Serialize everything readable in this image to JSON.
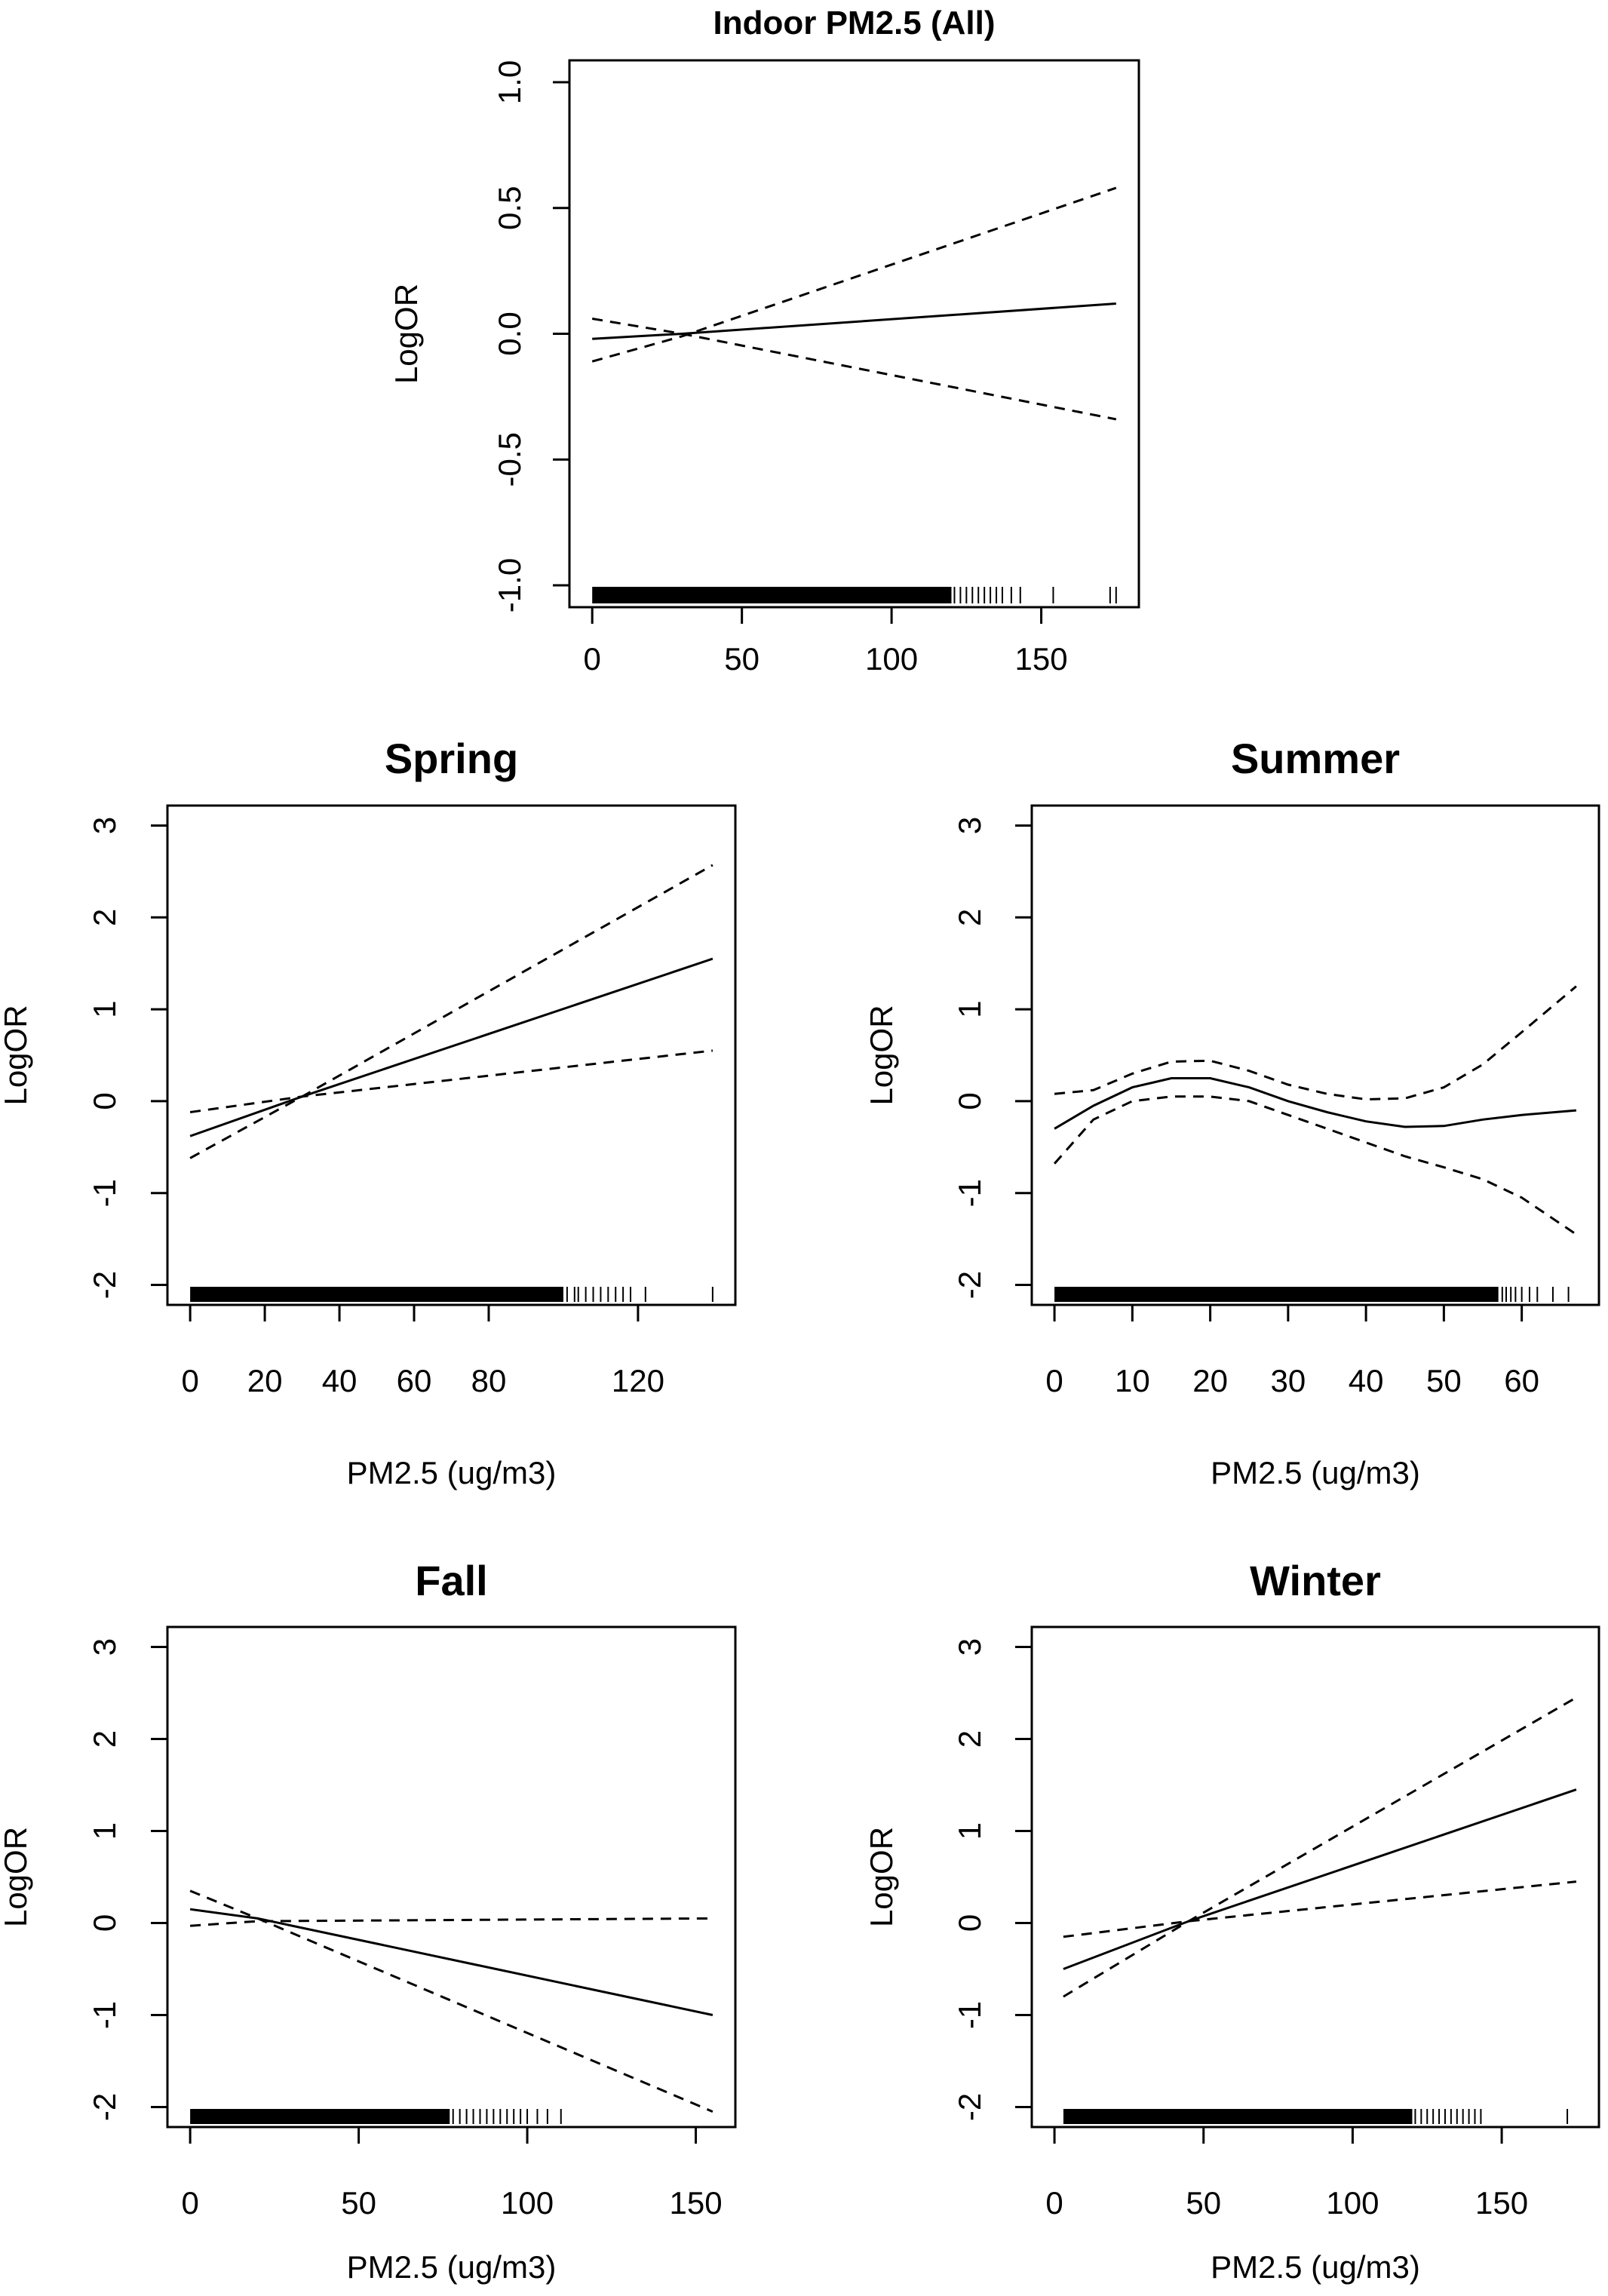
{
  "chart_data": [
    {
      "type": "line",
      "title": "Indoor PM2.5 (All)",
      "xlabel": "",
      "ylabel": "LogOR",
      "xlim": [
        0,
        175
      ],
      "ylim": [
        -1.0,
        1.0
      ],
      "xticks": [
        0,
        50,
        100,
        150
      ],
      "yticks": [
        -1.0,
        -0.5,
        0.0,
        0.5,
        1.0
      ],
      "ytick_labels": [
        "-1.0",
        "-0.5",
        "0.0",
        "0.5",
        "1.0"
      ],
      "grid": false,
      "series": [
        {
          "style": "solid",
          "x": [
            0,
            30,
            175
          ],
          "y": [
            -0.02,
            0.0,
            0.12
          ]
        },
        {
          "style": "dashed",
          "x": [
            0,
            30,
            175
          ],
          "y": [
            -0.11,
            -0.01,
            0.58
          ]
        },
        {
          "style": "dashed",
          "x": [
            0,
            30,
            175
          ],
          "y": [
            0.06,
            0.0,
            -0.34
          ]
        }
      ],
      "rug": {
        "dense_range": [
          0,
          120
        ],
        "sparse": [
          121,
          123,
          125,
          127,
          129,
          131,
          133,
          135,
          137,
          140,
          143,
          154,
          173,
          175
        ]
      }
    },
    {
      "type": "line",
      "title": "Spring",
      "xlabel": "PM2.5 (ug/m3)",
      "ylabel": "LogOR",
      "xlim": [
        0,
        140
      ],
      "ylim": [
        -2,
        3
      ],
      "xticks": [
        0,
        20,
        40,
        60,
        80,
        120
      ],
      "yticks": [
        -2,
        -1,
        0,
        1,
        2,
        3
      ],
      "ytick_labels": [
        "-2",
        "-1",
        "0",
        "1",
        "2",
        "3"
      ],
      "grid": false,
      "series": [
        {
          "style": "solid",
          "x": [
            0,
            30,
            140
          ],
          "y": [
            -0.38,
            0.05,
            1.55
          ]
        },
        {
          "style": "dashed",
          "x": [
            0,
            30,
            140
          ],
          "y": [
            -0.62,
            0.05,
            2.57
          ]
        },
        {
          "style": "dashed",
          "x": [
            0,
            30,
            140
          ],
          "y": [
            -0.12,
            0.05,
            0.55
          ]
        }
      ],
      "rug": {
        "dense_range": [
          0,
          100
        ],
        "sparse": [
          101,
          103,
          104,
          106,
          108,
          110,
          112,
          114,
          116,
          118,
          122,
          140
        ]
      }
    },
    {
      "type": "line",
      "title": "Summer",
      "xlabel": "PM2.5 (ug/m3)",
      "ylabel": "LogOR",
      "xlim": [
        0,
        67
      ],
      "ylim": [
        -2,
        3
      ],
      "xticks": [
        0,
        10,
        20,
        30,
        40,
        50,
        60
      ],
      "yticks": [
        -2,
        -1,
        0,
        1,
        2,
        3
      ],
      "ytick_labels": [
        "-2",
        "-1",
        "0",
        "1",
        "2",
        "3"
      ],
      "grid": false,
      "series": [
        {
          "style": "solid",
          "x": [
            0,
            5,
            10,
            15,
            20,
            25,
            30,
            35,
            40,
            45,
            50,
            55,
            60,
            67
          ],
          "y": [
            -0.3,
            -0.05,
            0.15,
            0.25,
            0.25,
            0.15,
            0.0,
            -0.12,
            -0.22,
            -0.28,
            -0.27,
            -0.2,
            -0.15,
            -0.1
          ]
        },
        {
          "style": "dashed",
          "x": [
            0,
            5,
            10,
            15,
            20,
            25,
            30,
            35,
            40,
            45,
            50,
            55,
            60,
            67
          ],
          "y": [
            0.08,
            0.12,
            0.3,
            0.43,
            0.44,
            0.33,
            0.18,
            0.08,
            0.02,
            0.03,
            0.15,
            0.4,
            0.75,
            1.25
          ]
        },
        {
          "style": "dashed",
          "x": [
            0,
            5,
            10,
            15,
            20,
            25,
            30,
            35,
            40,
            45,
            50,
            55,
            60,
            67
          ],
          "y": [
            -0.68,
            -0.2,
            0.0,
            0.05,
            0.05,
            0.0,
            -0.15,
            -0.3,
            -0.45,
            -0.6,
            -0.72,
            -0.85,
            -1.05,
            -1.45
          ]
        }
      ],
      "rug": {
        "dense_range": [
          0,
          57
        ],
        "sparse": [
          57.5,
          58,
          58.6,
          59.2,
          60,
          61,
          62,
          64,
          66
        ]
      }
    },
    {
      "type": "line",
      "title": "Fall",
      "xlabel": "PM2.5 (ug/m3)",
      "ylabel": "LogOR",
      "xlim": [
        0,
        155
      ],
      "ylim": [
        -2,
        3
      ],
      "xticks": [
        0,
        50,
        100,
        150
      ],
      "yticks": [
        -2,
        -1,
        0,
        1,
        2,
        3
      ],
      "ytick_labels": [
        "-2",
        "-1",
        "0",
        "1",
        "2",
        "3"
      ],
      "grid": false,
      "series": [
        {
          "style": "solid",
          "x": [
            0,
            20,
            155
          ],
          "y": [
            0.15,
            0.05,
            -1.0
          ]
        },
        {
          "style": "dashed",
          "x": [
            0,
            20,
            155
          ],
          "y": [
            0.35,
            0.05,
            -2.05
          ]
        },
        {
          "style": "dashed",
          "x": [
            0,
            20,
            155
          ],
          "y": [
            -0.03,
            0.02,
            0.05
          ]
        }
      ],
      "rug": {
        "dense_range": [
          0,
          77
        ],
        "sparse": [
          78,
          80,
          82,
          84,
          86,
          88,
          90,
          92,
          94,
          96,
          98,
          100,
          103,
          106,
          110
        ]
      }
    },
    {
      "type": "line",
      "title": "Winter",
      "xlabel": "PM2.5 (ug/m3)",
      "ylabel": "LogOR",
      "xlim": [
        0,
        175
      ],
      "ylim": [
        -2,
        3
      ],
      "xticks": [
        0,
        50,
        100,
        150
      ],
      "yticks": [
        -2,
        -1,
        0,
        1,
        2,
        3
      ],
      "ytick_labels": [
        "-2",
        "-1",
        "0",
        "1",
        "2",
        "3"
      ],
      "grid": false,
      "series": [
        {
          "style": "solid",
          "x": [
            3,
            45,
            175
          ],
          "y": [
            -0.5,
            0.02,
            1.45
          ]
        },
        {
          "style": "dashed",
          "x": [
            3,
            45,
            175
          ],
          "y": [
            -0.8,
            0.02,
            2.45
          ]
        },
        {
          "style": "dashed",
          "x": [
            3,
            45,
            175
          ],
          "y": [
            -0.15,
            0.02,
            0.45
          ]
        }
      ],
      "rug": {
        "dense_range": [
          3,
          120
        ],
        "sparse": [
          121,
          123,
          125,
          127,
          129,
          131,
          133,
          135,
          137,
          139,
          141,
          143,
          172
        ]
      }
    }
  ]
}
